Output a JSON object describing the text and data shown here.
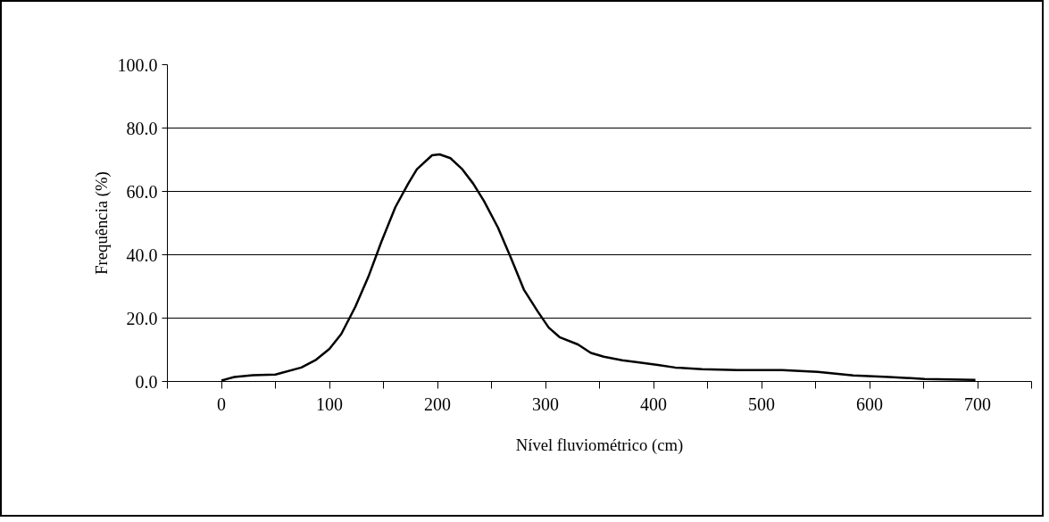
{
  "chart_data": {
    "type": "line",
    "xlabel": "Nível fluviométrico (cm)",
    "ylabel": "Frequência (%)",
    "x": [
      0,
      12,
      29,
      50,
      74,
      87,
      100,
      111,
      124,
      136,
      148,
      161,
      173,
      181,
      195,
      202,
      212,
      223,
      233,
      243,
      256,
      268,
      280,
      293,
      303,
      313,
      330,
      342,
      354,
      371,
      387,
      404,
      420,
      445,
      478,
      519,
      552,
      585,
      618,
      651,
      698
    ],
    "series": [
      {
        "color": "#000000",
        "values": [
          0.3,
          1.4,
          2,
          2.2,
          4.4,
          6.7,
          10.3,
          15,
          23.6,
          33,
          44,
          55,
          62.5,
          67,
          71.4,
          71.7,
          70.5,
          67,
          62.5,
          57,
          48.6,
          39,
          29,
          22,
          17,
          14,
          11.7,
          9,
          7.8,
          6.7,
          6,
          5.2,
          4.4,
          3.9,
          3.6,
          3.6,
          3,
          1.9,
          1.4,
          0.8,
          0.5
        ]
      }
    ],
    "xlim": [
      -50,
      750
    ],
    "xticks": [
      {
        "value": -50,
        "label": null
      },
      0,
      {
        "value": 50,
        "label": null
      },
      100,
      {
        "value": 150,
        "label": null
      },
      200,
      {
        "value": 250,
        "label": null
      },
      300,
      {
        "value": 350,
        "label": null
      },
      400,
      {
        "value": 450,
        "label": null
      },
      500,
      {
        "value": 550,
        "label": null
      },
      600,
      {
        "value": 650,
        "label": null
      },
      700,
      {
        "value": 750,
        "label": null
      }
    ],
    "ylim": [
      0,
      100
    ],
    "yticks": [
      {
        "value": 0,
        "label": "0.0"
      },
      {
        "value": 20,
        "label": "20.0"
      },
      {
        "value": 40,
        "label": "40.0"
      },
      {
        "value": 60,
        "label": "60.0"
      },
      {
        "value": 80,
        "label": "80.0"
      },
      {
        "value": 100,
        "label": "100.0"
      }
    ],
    "grid": "y",
    "marker": "none",
    "line_style": "solid"
  }
}
